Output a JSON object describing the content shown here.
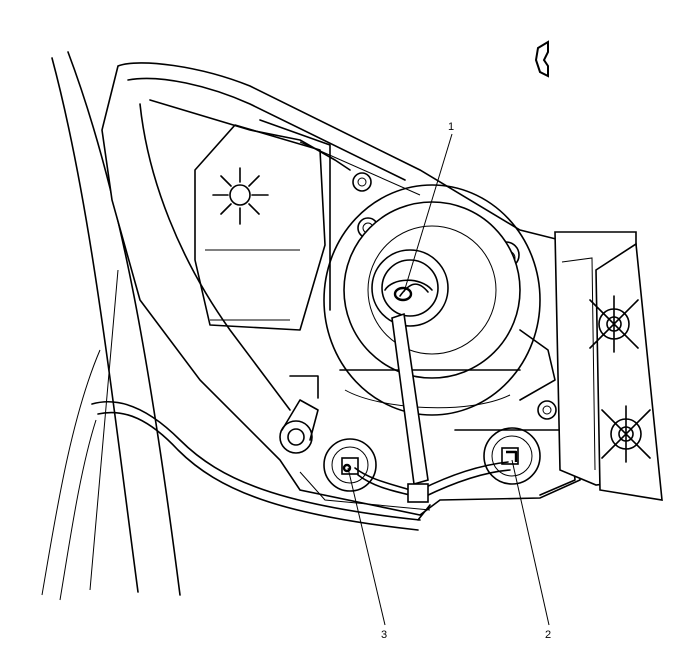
{
  "diagram": {
    "type": "technical-line-drawing",
    "orientation_arrow_icon": "view-direction-arrow",
    "callouts": [
      {
        "id": "callout-1",
        "label": "1"
      },
      {
        "id": "callout-2",
        "label": "2"
      },
      {
        "id": "callout-3",
        "label": "3"
      }
    ]
  }
}
